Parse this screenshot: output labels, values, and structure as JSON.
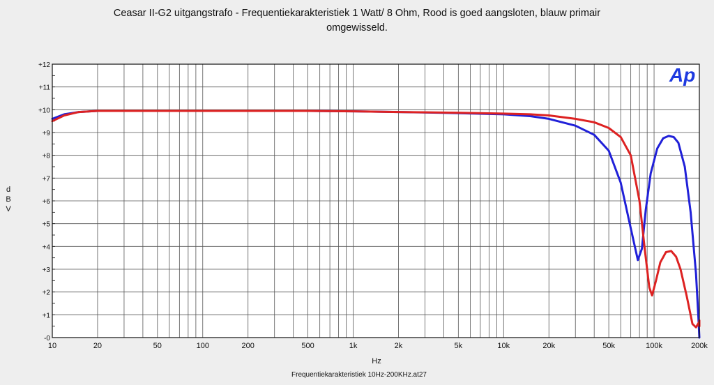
{
  "title_line1": "Ceasar II-G2 uitgangstrafo - Frequentiekarakteristiek 1 Watt/  8 Ohm, Rood is goed aangsloten, blauw primair",
  "title_line2": "omgewisseld.",
  "logo_text": "Ap",
  "footer": "Frequentiekarakteristiek 10Hz-200KHz.at27",
  "chart_data": {
    "type": "line",
    "title": "Ceasar II-G2 uitgangstrafo - Frequentiekarakteristiek 1 Watt/  8 Ohm, Rood is goed aangsloten, blauw primair omgewisseld.",
    "xlabel": "Hz",
    "ylabel": "dBV",
    "x_scale": "log",
    "xlim": [
      10,
      200000
    ],
    "ylim": [
      0,
      12
    ],
    "grid": true,
    "x_ticks": [
      {
        "value": 10,
        "label": "10"
      },
      {
        "value": 20,
        "label": "20"
      },
      {
        "value": 50,
        "label": "50"
      },
      {
        "value": 100,
        "label": "100"
      },
      {
        "value": 200,
        "label": "200"
      },
      {
        "value": 500,
        "label": "500"
      },
      {
        "value": 1000,
        "label": "1k"
      },
      {
        "value": 2000,
        "label": "2k"
      },
      {
        "value": 5000,
        "label": "5k"
      },
      {
        "value": 10000,
        "label": "10k"
      },
      {
        "value": 20000,
        "label": "20k"
      },
      {
        "value": 50000,
        "label": "50k"
      },
      {
        "value": 100000,
        "label": "100k"
      },
      {
        "value": 200000,
        "label": "200k"
      }
    ],
    "y_ticks": [
      {
        "value": 12,
        "label": "+12"
      },
      {
        "value": 11,
        "label": "+11"
      },
      {
        "value": 10,
        "label": "+10"
      },
      {
        "value": 9,
        "label": "+9"
      },
      {
        "value": 8,
        "label": "+8"
      },
      {
        "value": 7,
        "label": "+7"
      },
      {
        "value": 6,
        "label": "+6"
      },
      {
        "value": 5,
        "label": "+5"
      },
      {
        "value": 4,
        "label": "+4"
      },
      {
        "value": 3,
        "label": "+3"
      },
      {
        "value": 2,
        "label": "+2"
      },
      {
        "value": 1,
        "label": "+1"
      },
      {
        "value": 0,
        "label": "-0"
      }
    ],
    "series": [
      {
        "color": "#2020d8",
        "x": [
          10,
          12,
          15,
          20,
          50,
          100,
          500,
          1000,
          2000,
          5000,
          10000,
          15000,
          20000,
          30000,
          40000,
          50000,
          60000,
          70000,
          78000,
          83000,
          88000,
          95000,
          105000,
          115000,
          125000,
          135000,
          145000,
          160000,
          175000,
          190000,
          197000,
          200000
        ],
        "y": [
          9.6,
          9.8,
          9.9,
          9.95,
          9.95,
          9.95,
          9.95,
          9.93,
          9.9,
          9.85,
          9.8,
          9.72,
          9.6,
          9.3,
          8.9,
          8.2,
          6.8,
          4.8,
          3.4,
          3.9,
          5.6,
          7.2,
          8.3,
          8.75,
          8.85,
          8.8,
          8.55,
          7.5,
          5.5,
          2.8,
          0.9,
          0.0
        ]
      },
      {
        "color": "#dd2222",
        "x": [
          10,
          12,
          15,
          20,
          50,
          100,
          500,
          1000,
          2000,
          5000,
          10000,
          15000,
          20000,
          30000,
          40000,
          50000,
          60000,
          70000,
          80000,
          87000,
          93000,
          97000,
          103000,
          110000,
          120000,
          130000,
          140000,
          150000,
          165000,
          180000,
          190000,
          200000,
          210000,
          220000
        ],
        "y": [
          9.5,
          9.75,
          9.9,
          9.95,
          9.95,
          9.95,
          9.95,
          9.93,
          9.9,
          9.87,
          9.83,
          9.8,
          9.75,
          9.6,
          9.45,
          9.2,
          8.8,
          8.0,
          6.0,
          3.8,
          2.2,
          1.85,
          2.5,
          3.3,
          3.75,
          3.8,
          3.55,
          3.0,
          1.8,
          0.6,
          0.45,
          0.7,
          0.75,
          0.5
        ]
      }
    ]
  }
}
